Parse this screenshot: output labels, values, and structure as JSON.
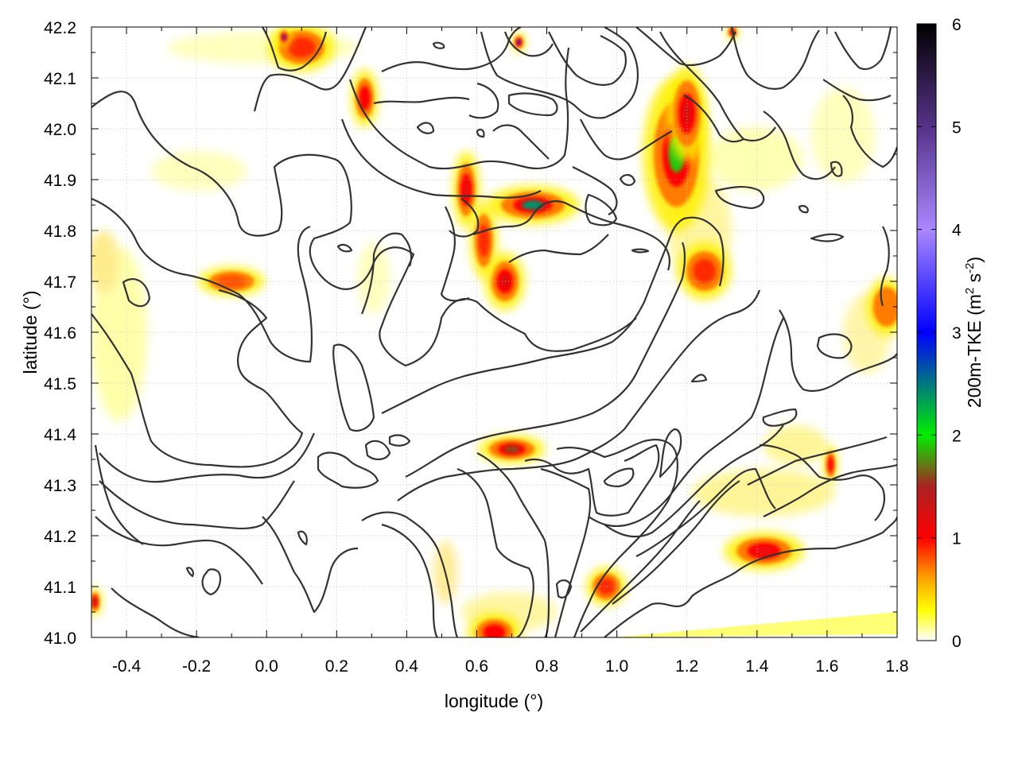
{
  "chart_data": {
    "type": "heatmap",
    "title": "",
    "xlabel": "longitude (°)",
    "ylabel": "latitude (°)",
    "colorbar_label_main": "200m-TKE (m",
    "colorbar_label_sup1": "2",
    "colorbar_label_mid": " s",
    "colorbar_label_sup2": "-2",
    "colorbar_label_end": ")",
    "xlim": [
      -0.5,
      1.8
    ],
    "ylim": [
      41.0,
      42.2
    ],
    "x_ticks": [
      "-0.4",
      "-0.2",
      "0.0",
      "0.2",
      "0.4",
      "0.6",
      "0.8",
      "1.0",
      "1.2",
      "1.4",
      "1.6",
      "1.8"
    ],
    "x_tick_values": [
      -0.4,
      -0.2,
      0.0,
      0.2,
      0.4,
      0.6,
      0.8,
      1.0,
      1.2,
      1.4,
      1.6,
      1.8
    ],
    "y_ticks": [
      "41.0",
      "41.1",
      "41.2",
      "41.3",
      "41.4",
      "41.5",
      "41.6",
      "41.7",
      "41.8",
      "41.9",
      "42.0",
      "42.1",
      "42.2"
    ],
    "y_tick_values": [
      41.0,
      41.1,
      41.2,
      41.3,
      41.4,
      41.5,
      41.6,
      41.7,
      41.8,
      41.9,
      42.0,
      42.1,
      42.2
    ],
    "colorbar_range": [
      0,
      6
    ],
    "colorbar_ticks": [
      "0",
      "1",
      "2",
      "3",
      "4",
      "5",
      "6"
    ],
    "colorbar_tick_values": [
      0,
      1,
      2,
      3,
      4,
      5,
      6
    ],
    "colormap": [
      {
        "v": 0.0,
        "color": "#ffffff"
      },
      {
        "v": 0.3,
        "color": "#ffff00"
      },
      {
        "v": 0.6,
        "color": "#ffa500"
      },
      {
        "v": 1.0,
        "color": "#ff0000"
      },
      {
        "v": 1.5,
        "color": "#aa2222"
      },
      {
        "v": 2.0,
        "color": "#00ee00"
      },
      {
        "v": 3.0,
        "color": "#0000ff"
      },
      {
        "v": 4.0,
        "color": "#aa88ff"
      },
      {
        "v": 5.0,
        "color": "#553388"
      },
      {
        "v": 6.0,
        "color": "#000000"
      }
    ],
    "grid": true,
    "contour_color": "#333333",
    "hotspots": [
      {
        "lon": 1.17,
        "lat": 41.95,
        "tke": 1.9,
        "rx": 0.05,
        "ry": 0.08
      },
      {
        "lon": 1.2,
        "lat": 42.03,
        "tke": 1.2,
        "rx": 0.03,
        "ry": 0.05
      },
      {
        "lon": 0.76,
        "lat": 41.85,
        "tke": 2.4,
        "rx": 0.07,
        "ry": 0.02
      },
      {
        "lon": 0.7,
        "lat": 41.37,
        "tke": 1.6,
        "rx": 0.05,
        "ry": 0.015
      },
      {
        "lon": 1.42,
        "lat": 41.17,
        "tke": 1.1,
        "rx": 0.06,
        "ry": 0.02
      },
      {
        "lon": 0.68,
        "lat": 41.7,
        "tke": 1.2,
        "rx": 0.03,
        "ry": 0.03
      },
      {
        "lon": 0.57,
        "lat": 41.88,
        "tke": 1.1,
        "rx": 0.02,
        "ry": 0.04
      },
      {
        "lon": 0.28,
        "lat": 42.06,
        "tke": 1.0,
        "rx": 0.02,
        "ry": 0.03
      },
      {
        "lon": 0.1,
        "lat": 42.16,
        "tke": 0.9,
        "rx": 0.05,
        "ry": 0.025
      },
      {
        "lon": 0.65,
        "lat": 41.01,
        "tke": 1.0,
        "rx": 0.04,
        "ry": 0.02
      },
      {
        "lon": 0.97,
        "lat": 41.1,
        "tke": 0.9,
        "rx": 0.03,
        "ry": 0.02
      },
      {
        "lon": 1.25,
        "lat": 41.72,
        "tke": 0.9,
        "rx": 0.04,
        "ry": 0.03
      },
      {
        "lon": 1.61,
        "lat": 41.34,
        "tke": 1.0,
        "rx": 0.01,
        "ry": 0.02
      },
      {
        "lon": 0.62,
        "lat": 41.78,
        "tke": 0.9,
        "rx": 0.02,
        "ry": 0.04
      },
      {
        "lon": -0.1,
        "lat": 41.7,
        "tke": 0.8,
        "rx": 0.05,
        "ry": 0.015
      },
      {
        "lon": 1.77,
        "lat": 41.65,
        "tke": 0.7,
        "rx": 0.03,
        "ry": 0.03
      },
      {
        "lon": 0.72,
        "lat": 42.17,
        "tke": 3.0,
        "rx": 0.01,
        "ry": 0.01
      },
      {
        "lon": 1.33,
        "lat": 42.19,
        "tke": 5.5,
        "rx": 0.008,
        "ry": 0.008
      },
      {
        "lon": 0.05,
        "lat": 42.18,
        "tke": 3.2,
        "rx": 0.01,
        "ry": 0.01
      },
      {
        "lon": -0.49,
        "lat": 41.07,
        "tke": 1.5,
        "rx": 0.01,
        "ry": 0.015
      }
    ]
  }
}
